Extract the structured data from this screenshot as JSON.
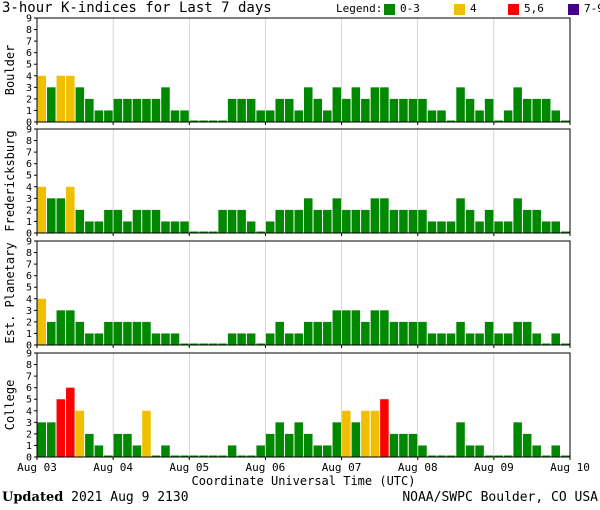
{
  "title": "3-hour K-indices for Last 7 days",
  "legend": {
    "label": "Legend:",
    "items": [
      {
        "text": "0-3",
        "color": "#008800"
      },
      {
        "text": "4",
        "color": "#f0c000"
      },
      {
        "text": "5,6",
        "color": "#ff0000"
      },
      {
        "text": "7-9",
        "color": "#440088"
      }
    ]
  },
  "footer": {
    "updated_label": "Updated",
    "updated_value": "2021 Aug  9 2130",
    "source": "NOAA/SWPC Boulder, CO USA"
  },
  "chart_data": {
    "type": "bar",
    "xlabel": "Coordinate Universal Time (UTC)",
    "x_ticks": [
      "Aug 03",
      "Aug 04",
      "Aug 05",
      "Aug 06",
      "Aug 07",
      "Aug 08",
      "Aug 09",
      "Aug 10"
    ],
    "ylim": [
      0,
      9
    ],
    "y_ticks": [
      "0",
      "1",
      "2",
      "3",
      "4",
      "5",
      "6",
      "7",
      "8",
      "9"
    ],
    "bars_per_day": 8,
    "color_thresholds": {
      "green": "0-3",
      "yellow": "4",
      "red": "5,6",
      "purple": "7-9"
    },
    "series": [
      {
        "name": "Boulder",
        "values": [
          4,
          3,
          4,
          4,
          3,
          2,
          1,
          1,
          2,
          2,
          2,
          2,
          2,
          3,
          1,
          1,
          0,
          0,
          0,
          0,
          2,
          2,
          2,
          1,
          1,
          2,
          2,
          1,
          3,
          2,
          1,
          3,
          2,
          3,
          2,
          3,
          3,
          2,
          2,
          2,
          2,
          1,
          1,
          0,
          3,
          2,
          1,
          2,
          0,
          1,
          3,
          2,
          2,
          2,
          1,
          0
        ]
      },
      {
        "name": "Fredericksburg",
        "values": [
          4,
          3,
          3,
          4,
          2,
          1,
          1,
          2,
          2,
          1,
          2,
          2,
          2,
          1,
          1,
          1,
          0,
          0,
          0,
          2,
          2,
          2,
          1,
          0,
          1,
          2,
          2,
          2,
          3,
          2,
          2,
          3,
          2,
          2,
          2,
          3,
          3,
          2,
          2,
          2,
          2,
          1,
          1,
          1,
          3,
          2,
          1,
          2,
          1,
          1,
          3,
          2,
          2,
          1,
          1,
          0
        ]
      },
      {
        "name": "Est. Planetary",
        "values": [
          4,
          2,
          3,
          3,
          2,
          1,
          1,
          2,
          2,
          2,
          2,
          2,
          1,
          1,
          1,
          0,
          0,
          0,
          0,
          0,
          1,
          1,
          1,
          0,
          1,
          2,
          1,
          1,
          2,
          2,
          2,
          3,
          3,
          3,
          2,
          3,
          3,
          2,
          2,
          2,
          2,
          1,
          1,
          1,
          2,
          1,
          1,
          2,
          1,
          1,
          2,
          2,
          1,
          0,
          1,
          0
        ]
      },
      {
        "name": "College",
        "values": [
          3,
          3,
          5,
          6,
          4,
          2,
          1,
          0,
          2,
          2,
          1,
          4,
          0,
          1,
          0,
          0,
          0,
          0,
          0,
          0,
          1,
          0,
          0,
          1,
          2,
          3,
          2,
          3,
          2,
          1,
          1,
          3,
          4,
          3,
          4,
          4,
          5,
          2,
          2,
          2,
          1,
          0,
          0,
          0,
          3,
          1,
          1,
          0,
          0,
          0,
          3,
          2,
          1,
          0,
          1,
          0
        ]
      }
    ]
  }
}
